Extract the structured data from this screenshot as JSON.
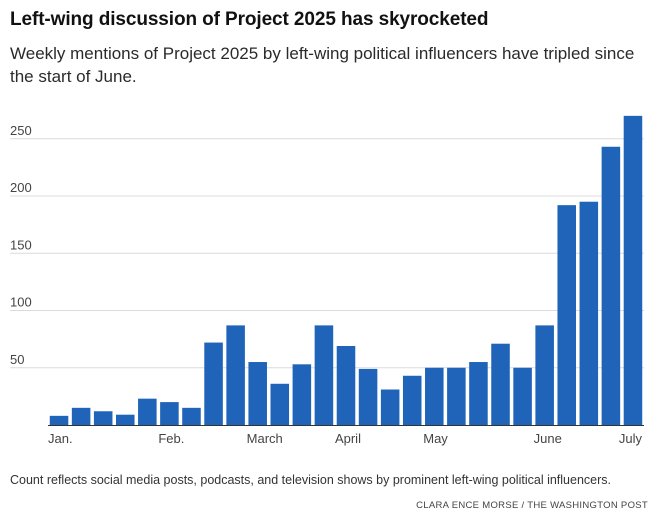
{
  "header": {
    "title": "Left-wing discussion of Project 2025 has skyrocketed",
    "subtitle": "Weekly mentions of Project 2025 by left-wing political influencers have tripled since the start of June."
  },
  "footer": {
    "note": "Count reflects social media posts, podcasts, and television shows by prominent left-wing political influencers.",
    "credit": "CLARA ENCE MORSE / THE WASHINGTON POST"
  },
  "chart_data": {
    "type": "bar",
    "title": "Left-wing discussion of Project 2025 has skyrocketed",
    "xlabel": "",
    "ylabel": "",
    "ylim": [
      0,
      270
    ],
    "yticks": [
      50,
      100,
      150,
      200,
      250
    ],
    "grid": true,
    "bar_color": "#1f64b8",
    "month_labels": [
      {
        "label": "Jan.",
        "week_index": 0
      },
      {
        "label": "Feb.",
        "week_index": 5
      },
      {
        "label": "March",
        "week_index": 9
      },
      {
        "label": "April",
        "week_index": 13
      },
      {
        "label": "May",
        "week_index": 17
      },
      {
        "label": "June",
        "week_index": 22
      },
      {
        "label": "July",
        "week_index": 26
      }
    ],
    "values": [
      8,
      15,
      12,
      9,
      23,
      20,
      15,
      72,
      87,
      55,
      36,
      53,
      87,
      69,
      49,
      31,
      43,
      50,
      50,
      55,
      71,
      50,
      87,
      192,
      195,
      243,
      270
    ]
  }
}
